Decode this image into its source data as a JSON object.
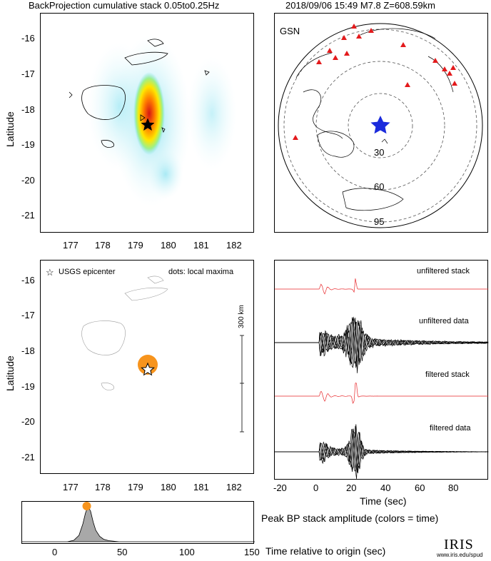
{
  "header": {
    "title_left": "BackProjection cumulative stack 0.05to0.25Hz",
    "title_right": "2018/09/06 15:49  M7.8  Z=608.59km"
  },
  "colors": {
    "orange": "#f7941d",
    "red_trace": "#e8262a",
    "blue_star": "#1b2bdc",
    "station": "#e31a1c",
    "cyan_halo": "#9fe8f2",
    "grey_fill": "#a8a8a8"
  },
  "panel_map_bp": {
    "ylabel": "Latitude",
    "y_ticks": [
      "-16",
      "-17",
      "-18",
      "-19",
      "-20",
      "-21"
    ],
    "x_ticks": [
      "177",
      "178",
      "179",
      "180",
      "181",
      "182"
    ]
  },
  "panel_gsn": {
    "label": "GSN",
    "ring_labels": [
      "30",
      "60",
      "95"
    ]
  },
  "panel_map_max": {
    "ylabel": "Latitude",
    "legend_epicenter": "USGS epicenter",
    "legend_dots": "dots: local maxima",
    "scale_label": "300 km",
    "y_ticks": [
      "-16",
      "-17",
      "-18",
      "-19",
      "-20",
      "-21"
    ],
    "x_ticks": [
      "177",
      "178",
      "179",
      "180",
      "181",
      "182"
    ]
  },
  "panel_traces": {
    "labels": [
      "unfiltered stack",
      "unfiltered data",
      "filtered stack",
      "filtered data"
    ],
    "x_ticks": [
      "-20",
      "0",
      "20",
      "40",
      "60",
      "80"
    ],
    "xlabel": "Time (sec)"
  },
  "panel_peak": {
    "caption": "Peak BP stack amplitude (colors = time)",
    "x_ticks": [
      "0",
      "50",
      "100",
      "150"
    ],
    "xlabel": "Time relative to origin (sec)"
  },
  "logo": {
    "name": "IRIS",
    "url": "www.iris.edu/spud"
  },
  "chart_data": [
    {
      "type": "heatmap",
      "title": "BackProjection cumulative stack 0.05to0.25Hz",
      "ylabel": "Latitude",
      "xlim": [
        176.3,
        182.5
      ],
      "ylim": [
        -21.4,
        -15.6
      ],
      "epicenter": {
        "lon": 179.3,
        "lat": -18.47
      },
      "peak": {
        "lon": 179.35,
        "lat": -18.35
      }
    },
    {
      "type": "scatter",
      "title": "GSN",
      "epicenter": {
        "lon": 179.3,
        "lat": -18.47
      },
      "distance_rings_deg": [
        30,
        60,
        95
      ]
    },
    {
      "type": "scatter",
      "ylabel": "Latitude",
      "xlim": [
        176.3,
        182.5
      ],
      "ylim": [
        -21.4,
        -15.6
      ],
      "series": [
        {
          "name": "USGS epicenter",
          "points": [
            {
              "lon": 179.3,
              "lat": -18.47
            }
          ]
        },
        {
          "points": [
            {
              "lon": 179.3,
              "lat": -18.38
            }
          ]
        }
      ],
      "scale_bar_km": 300
    },
    {
      "type": "line",
      "xlabel": "Time (sec)",
      "xlim": [
        -25,
        95
      ],
      "series": [
        {
          "name": "unfiltered stack"
        },
        {
          "name": "unfiltered data"
        },
        {
          "name": "filtered stack"
        },
        {
          "name": "filtered data"
        }
      ]
    },
    {
      "type": "area",
      "xlabel": "Time relative to origin (sec)",
      "xlim": [
        -30,
        150
      ],
      "x": [
        -30,
        5,
        10,
        14,
        17,
        19,
        21,
        23,
        25,
        27,
        30,
        33,
        37,
        45,
        60,
        100,
        150
      ],
      "y": [
        0.0,
        0.0,
        0.04,
        0.18,
        0.5,
        0.8,
        1.0,
        0.85,
        0.55,
        0.32,
        0.15,
        0.07,
        0.03,
        0.0,
        0.0,
        0.0,
        0.0
      ],
      "peak": {
        "x": 20,
        "y": 1.0
      }
    }
  ]
}
